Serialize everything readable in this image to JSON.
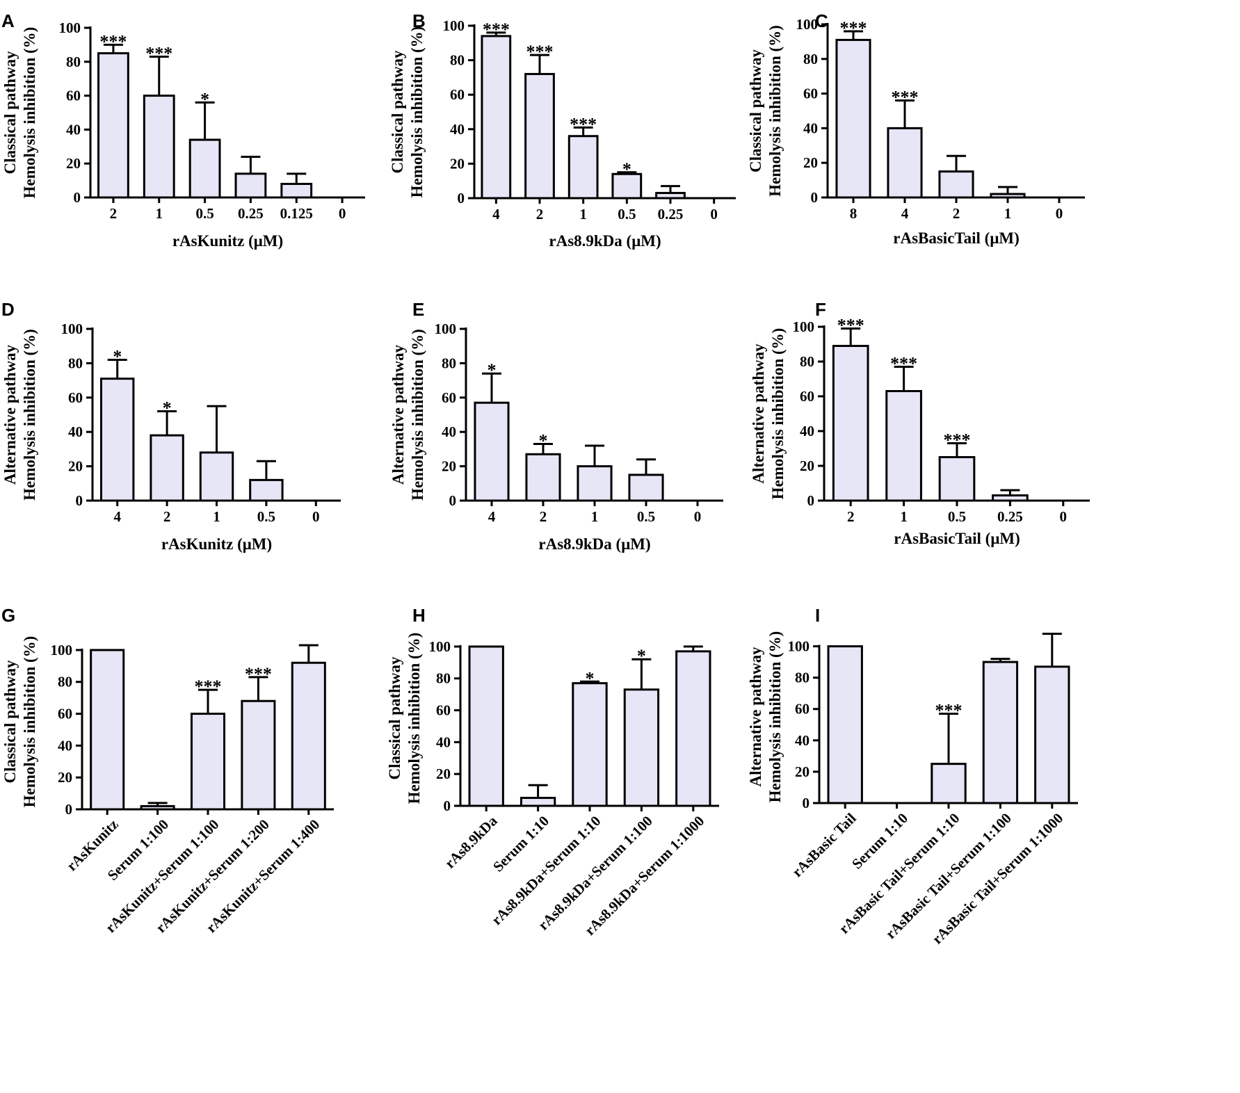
{
  "chart_data": [
    {
      "letter": "A",
      "type": "bar",
      "ylabel": [
        "Classical pathway",
        "Hemolysis inhibition (%)"
      ],
      "xlabel": "rAsKunitz (μM)",
      "ylim": [
        0,
        100
      ],
      "yticks": [
        0,
        20,
        40,
        60,
        80,
        100
      ],
      "categories": [
        "2",
        "1",
        "0.5",
        "0.25",
        "0.125",
        "0"
      ],
      "values": [
        85,
        60,
        34,
        14,
        8,
        0
      ],
      "errors": [
        5,
        23,
        22,
        10,
        6,
        0
      ],
      "significance": [
        "***",
        "***",
        "*",
        "",
        "",
        ""
      ]
    },
    {
      "letter": "B",
      "type": "bar",
      "ylabel": [
        "Classical pathway",
        "Hemolysis inhibition (%)"
      ],
      "xlabel": "rAs8.9kDa (μM)",
      "ylim": [
        0,
        100
      ],
      "yticks": [
        0,
        20,
        40,
        60,
        80,
        100
      ],
      "categories": [
        "4",
        "2",
        "1",
        "0.5",
        "0.25",
        "0"
      ],
      "values": [
        94,
        72,
        36,
        14,
        3,
        0
      ],
      "errors": [
        2,
        11,
        5,
        1,
        4,
        0
      ],
      "significance": [
        "***",
        "***",
        "***",
        "*",
        "",
        ""
      ]
    },
    {
      "letter": "C",
      "type": "bar",
      "ylabel": [
        "Classical pathway",
        "Hemolysis inhibition (%)"
      ],
      "xlabel": "rAsBasicTail (μM)",
      "ylim": [
        0,
        100
      ],
      "yticks": [
        0,
        20,
        40,
        60,
        80,
        100
      ],
      "categories": [
        "8",
        "4",
        "2",
        "1",
        "0"
      ],
      "values": [
        91,
        40,
        15,
        2,
        0
      ],
      "errors": [
        5,
        16,
        9,
        4,
        0
      ],
      "significance": [
        "***",
        "***",
        "",
        "",
        ""
      ]
    },
    {
      "letter": "D",
      "type": "bar",
      "ylabel": [
        "Alternative pathway",
        "Hemolysis inhibition (%)"
      ],
      "xlabel": "rAsKunitz (μM)",
      "ylim": [
        0,
        100
      ],
      "yticks": [
        0,
        20,
        40,
        60,
        80,
        100
      ],
      "categories": [
        "4",
        "2",
        "1",
        "0.5",
        "0"
      ],
      "values": [
        71,
        38,
        28,
        12,
        0
      ],
      "errors": [
        11,
        14,
        27,
        11,
        0
      ],
      "significance": [
        "*",
        "*",
        "",
        "",
        ""
      ]
    },
    {
      "letter": "E",
      "type": "bar",
      "ylabel": [
        "Alternative pathway",
        "Hemolysis inhibition (%)"
      ],
      "xlabel": "rAs8.9kDa (μM)",
      "ylim": [
        0,
        100
      ],
      "yticks": [
        0,
        20,
        40,
        60,
        80,
        100
      ],
      "categories": [
        "4",
        "2",
        "1",
        "0.5",
        "0"
      ],
      "values": [
        57,
        27,
        20,
        15,
        0
      ],
      "errors": [
        17,
        6,
        12,
        9,
        0
      ],
      "significance": [
        "*",
        "*",
        "",
        "",
        ""
      ]
    },
    {
      "letter": "F",
      "type": "bar",
      "ylabel": [
        "Alternative pathway",
        "Hemolysis inhibition (%)"
      ],
      "xlabel": "rAsBasicTail (μM)",
      "ylim": [
        0,
        100
      ],
      "yticks": [
        0,
        20,
        40,
        60,
        80,
        100
      ],
      "categories": [
        "2",
        "1",
        "0.5",
        "0.25",
        "0"
      ],
      "values": [
        89,
        63,
        25,
        3,
        0
      ],
      "errors": [
        10,
        14,
        8,
        3,
        0
      ],
      "significance": [
        "***",
        "***",
        "***",
        "",
        ""
      ]
    },
    {
      "letter": "G",
      "type": "bar",
      "ylabel": [
        "Classical pathway",
        "Hemolysis inhibition (%)"
      ],
      "xlabel": "",
      "ylim": [
        0,
        110
      ],
      "yticks": [
        0,
        20,
        40,
        60,
        80,
        100
      ],
      "categories": [
        "rAsKunitz",
        "Serum 1:100",
        "rAsKunitz+Serum 1:100",
        "rAsKunitz+Serum 1:200",
        "rAsKunitz+Serum 1:400"
      ],
      "values": [
        100,
        2,
        60,
        68,
        92
      ],
      "errors": [
        0,
        2,
        15,
        15,
        11
      ],
      "significance": [
        "",
        "",
        "***",
        "***",
        ""
      ]
    },
    {
      "letter": "H",
      "type": "bar",
      "ylabel": [
        "Classical pathway",
        "Hemolysis inhibition (%)"
      ],
      "xlabel": "",
      "ylim": [
        0,
        110
      ],
      "yticks": [
        0,
        20,
        40,
        60,
        80,
        100
      ],
      "categories": [
        "rAs8.9kDa",
        "Serum 1:10",
        "rAs8.9kDa+Serum 1:10",
        "rAs8.9kDa+Serum 1:100",
        "rAs8.9kDa+Serum 1:1000"
      ],
      "values": [
        100,
        5,
        77,
        73,
        97
      ],
      "errors": [
        0,
        8,
        1,
        19,
        3
      ],
      "significance": [
        "",
        "",
        "*",
        "*",
        ""
      ]
    },
    {
      "letter": "I",
      "type": "bar",
      "ylabel": [
        "Alternative pathway",
        "Hemolysis inhibition (%)"
      ],
      "xlabel": "",
      "ylim": [
        0,
        110
      ],
      "yticks": [
        0,
        20,
        40,
        60,
        80,
        100
      ],
      "categories": [
        "rAsBasic Tail",
        "Serum 1:10",
        "rAsBasic Tail+Serum 1:10",
        "rAsBasic Tail+Serum 1:100",
        "rAsBasic Tail+Serum 1:1000"
      ],
      "values": [
        100,
        0,
        25,
        90,
        87
      ],
      "errors": [
        0,
        0,
        32,
        2,
        21
      ],
      "significance": [
        "",
        "",
        "***",
        "",
        ""
      ]
    }
  ],
  "colors": {
    "bar_fill": "#e6e6f7",
    "stroke": "#000000"
  }
}
